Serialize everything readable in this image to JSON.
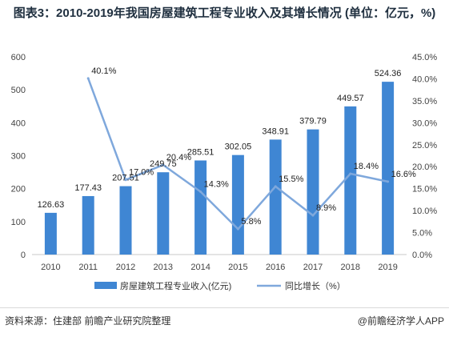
{
  "title": "图表3：2010-2019年我国房屋建筑工程专业收入及其增长情况 (单位：亿元，%)",
  "footer": {
    "source": "资料来源：住建部 前瞻产业研究院整理",
    "brand": "@前瞻经济学人APP"
  },
  "colors": {
    "bar": "#3f86d3",
    "line": "#7fa8dc"
  },
  "chart_data": {
    "type": "bar",
    "categories": [
      "2010",
      "2011",
      "2012",
      "2013",
      "2014",
      "2015",
      "2016",
      "2017",
      "2018",
      "2019"
    ],
    "series": [
      {
        "name": "房屋建筑工程专业收入(亿元)",
        "type": "bar",
        "axis": "left",
        "values": [
          126.63,
          177.43,
          207.51,
          249.75,
          285.51,
          302.05,
          348.91,
          379.79,
          449.57,
          524.36
        ],
        "labels": [
          "126.63",
          "177.43",
          "207.51",
          "249.75",
          "285.51",
          "302.05",
          "348.91",
          "379.79",
          "449.57",
          "524.36"
        ]
      },
      {
        "name": "同比增长（%）",
        "type": "line",
        "axis": "right",
        "values": [
          null,
          40.1,
          17.0,
          20.4,
          14.3,
          5.8,
          15.5,
          8.9,
          18.4,
          16.6
        ],
        "labels": [
          "",
          "40.1%",
          "17.0%",
          "20.4%",
          "14.3%",
          "5.8%",
          "15.5%",
          "8.9%",
          "18.4%",
          "16.6%"
        ]
      }
    ],
    "y_left": {
      "min": 0,
      "max": 600,
      "step": 100,
      "ticks": [
        "0",
        "100",
        "200",
        "300",
        "400",
        "500",
        "600"
      ]
    },
    "y_right": {
      "min": 0,
      "max": 45,
      "step": 5,
      "ticks": [
        "0.0%",
        "5.0%",
        "10.0%",
        "15.0%",
        "20.0%",
        "25.0%",
        "30.0%",
        "35.0%",
        "40.0%",
        "45.0%"
      ]
    },
    "grid": false,
    "legend_position": "bottom"
  }
}
